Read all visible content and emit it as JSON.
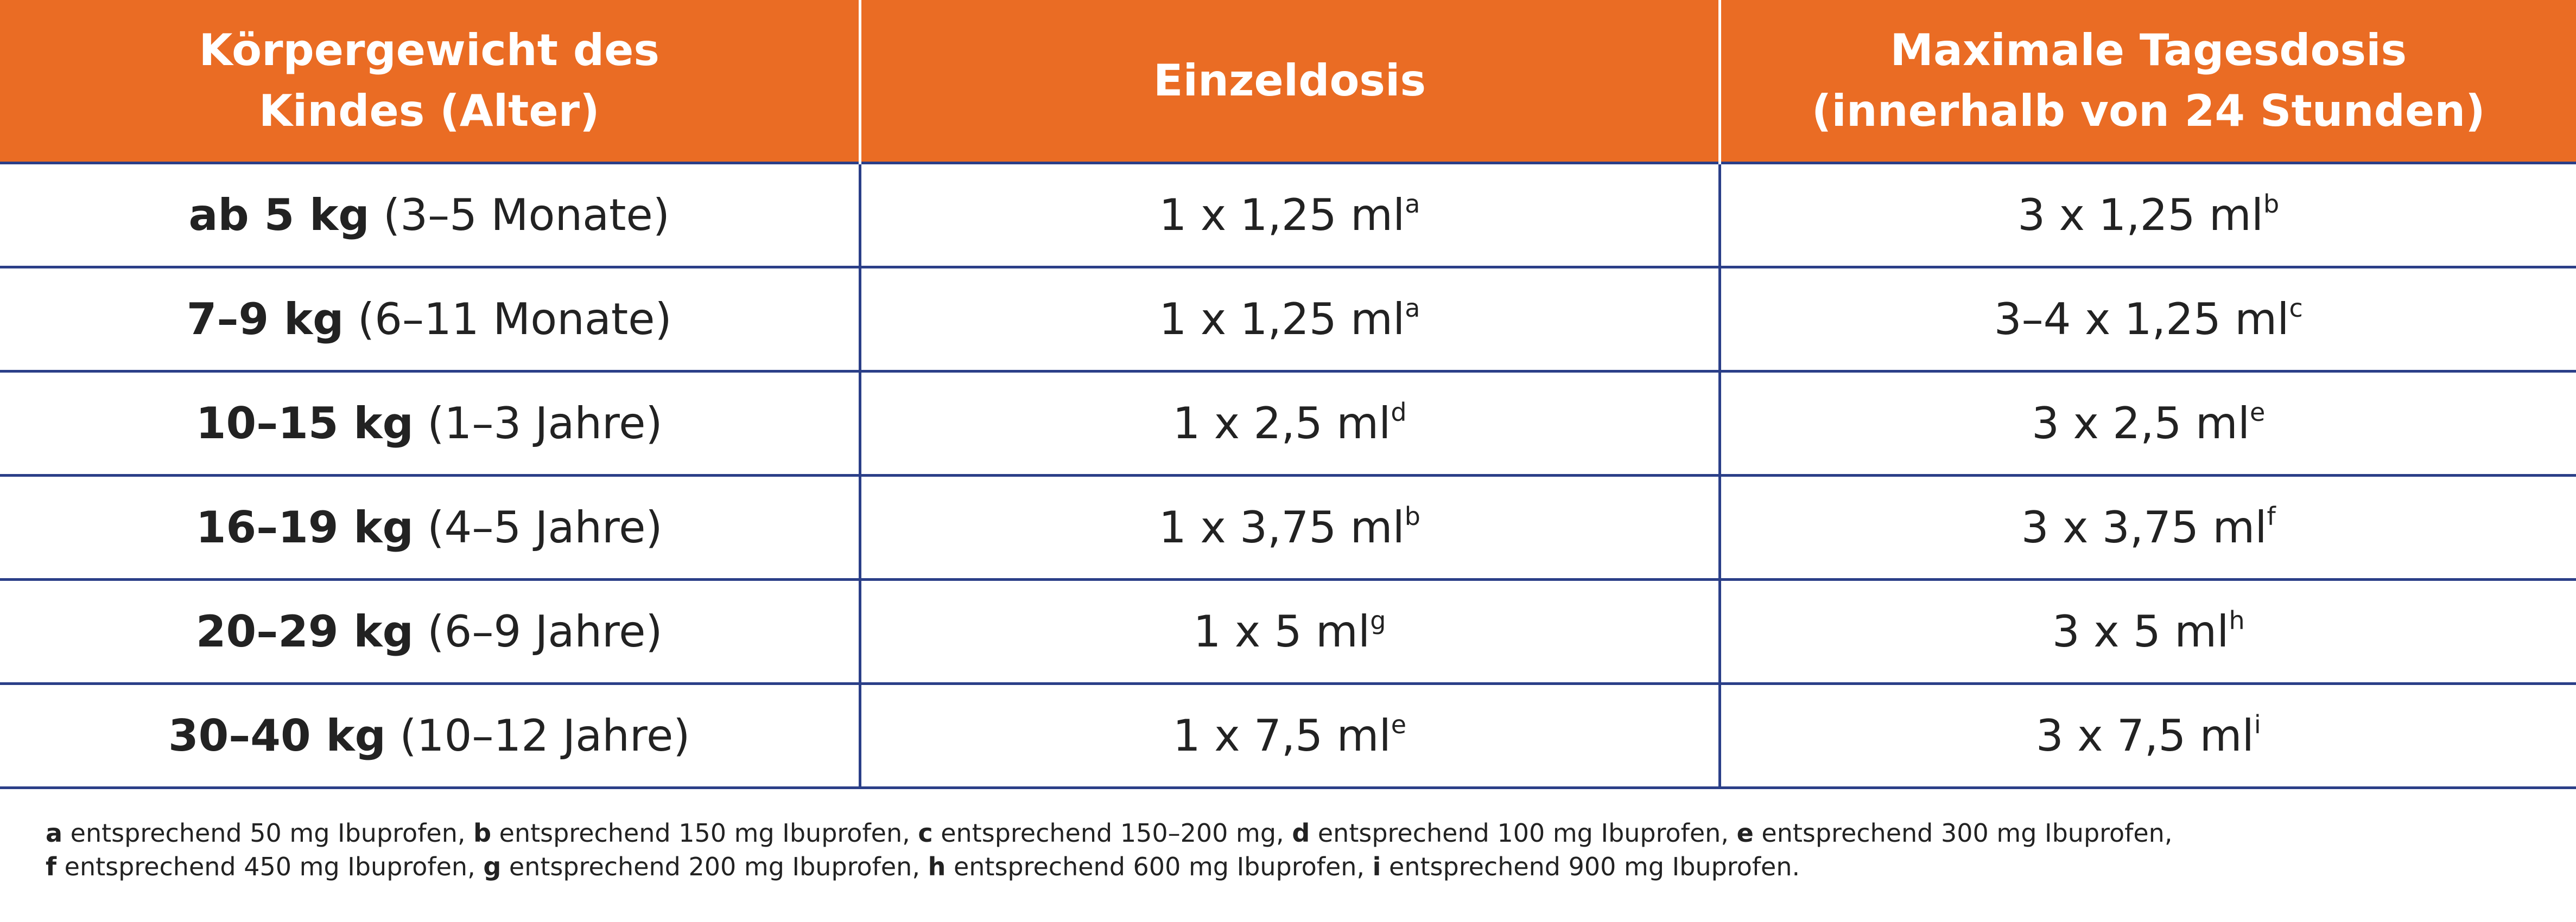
{
  "table": {
    "headers": [
      {
        "lines": [
          "Körpergewicht des",
          "Kindes (Alter)"
        ]
      },
      {
        "lines": [
          "Einzeldosis"
        ]
      },
      {
        "lines": [
          "Maximale Tagesdosis",
          "(innerhalb von 24 Stunden)"
        ]
      }
    ],
    "rows": [
      {
        "weight": "ab 5 kg",
        "age": "(3–5 Monate)",
        "single": "1 x 1,25 ml",
        "single_sup": "a",
        "daily": "3 x 1,25 ml",
        "daily_sup": "b"
      },
      {
        "weight": "7–9 kg",
        "age": "(6–11 Monate)",
        "single": "1 x 1,25 ml",
        "single_sup": "a",
        "daily": "3–4 x 1,25 ml",
        "daily_sup": "c"
      },
      {
        "weight": "10–15 kg",
        "age": "(1–3 Jahre)",
        "single": "1 x 2,5 ml",
        "single_sup": "d",
        "daily": "3 x 2,5 ml",
        "daily_sup": "e"
      },
      {
        "weight": "16–19 kg",
        "age": "(4–5 Jahre)",
        "single": "1 x 3,75 ml",
        "single_sup": "b",
        "daily": "3 x 3,75 ml",
        "daily_sup": "f"
      },
      {
        "weight": "20–29 kg",
        "age": "(6–9 Jahre)",
        "single": "1 x 5 ml",
        "single_sup": "g",
        "daily": "3 x 5 ml",
        "daily_sup": "h"
      },
      {
        "weight": "30–40 kg",
        "age": "(10–12 Jahre)",
        "single": "1 x 7,5 ml",
        "single_sup": "e",
        "daily": "3 x 7,5 ml",
        "daily_sup": "i"
      }
    ]
  },
  "footnotes": {
    "lines": [
      [
        {
          "key": "a",
          "text": " entsprechend 50 mg Ibuprofen, "
        },
        {
          "key": "b",
          "text": " entsprechend 150 mg Ibuprofen, "
        },
        {
          "key": "c",
          "text": " entsprechend 150–200 mg, "
        },
        {
          "key": "d",
          "text": " entsprechend 100 mg Ibuprofen, "
        },
        {
          "key": "e",
          "text": " entsprechend 300 mg Ibuprofen,"
        }
      ],
      [
        {
          "key": "f",
          "text": " entsprechend 450 mg Ibuprofen, "
        },
        {
          "key": "g",
          "text": " entsprechend 200 mg Ibuprofen, "
        },
        {
          "key": "h",
          "text": " entsprechend 600 mg Ibuprofen, "
        },
        {
          "key": "i",
          "text": " entsprechend 900 mg Ibuprofen."
        }
      ]
    ]
  },
  "colors": {
    "header_background": "#ea6c24",
    "header_text": "#ffffff",
    "grid_lines": "#2b3f88",
    "body_text": "#222222"
  }
}
